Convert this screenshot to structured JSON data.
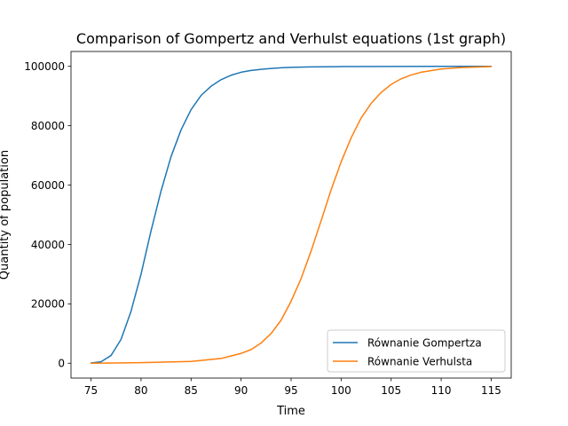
{
  "chart_data": {
    "type": "line",
    "title": "Comparison of Gompertz and Verhulst equations (1st graph)",
    "xlabel": "Time",
    "ylabel": "Quantity of population",
    "xlim": [
      73.0,
      117.0
    ],
    "ylim": [
      -5000,
      105000
    ],
    "xticks": [
      75,
      80,
      85,
      90,
      95,
      100,
      105,
      110,
      115
    ],
    "yticks": [
      0,
      20000,
      40000,
      60000,
      80000,
      100000
    ],
    "legend_position": "lower-right",
    "grid": false,
    "series": [
      {
        "name": "Równanie Gompertza",
        "color": "#1f77b4",
        "x": [
          75,
          76,
          77,
          78,
          79,
          80,
          81,
          82,
          83,
          84,
          85,
          86,
          87,
          88,
          89,
          90,
          91,
          92,
          93,
          94,
          95,
          97,
          100,
          105,
          110,
          115
        ],
        "y": [
          100,
          500,
          2600,
          8000,
          17500,
          30000,
          44600,
          58000,
          69600,
          78600,
          85400,
          90200,
          93300,
          95500,
          97000,
          98000,
          98600,
          99000,
          99300,
          99500,
          99650,
          99800,
          99900,
          99950,
          99990,
          100000
        ]
      },
      {
        "name": "Równanie Verhulsta",
        "color": "#ff7f0e",
        "x": [
          75,
          80,
          85,
          88,
          90,
          91,
          92,
          93,
          94,
          95,
          96,
          97,
          98,
          99,
          100,
          101,
          102,
          103,
          104,
          105,
          106,
          107,
          108,
          110,
          112,
          115
        ],
        "y": [
          0,
          200,
          600,
          1600,
          3300,
          4600,
          6800,
          10000,
          14500,
          20900,
          28500,
          37800,
          48000,
          58400,
          67800,
          75900,
          82600,
          87500,
          91200,
          93900,
          95800,
          97100,
          98000,
          99100,
          99600,
          99900
        ]
      }
    ]
  }
}
